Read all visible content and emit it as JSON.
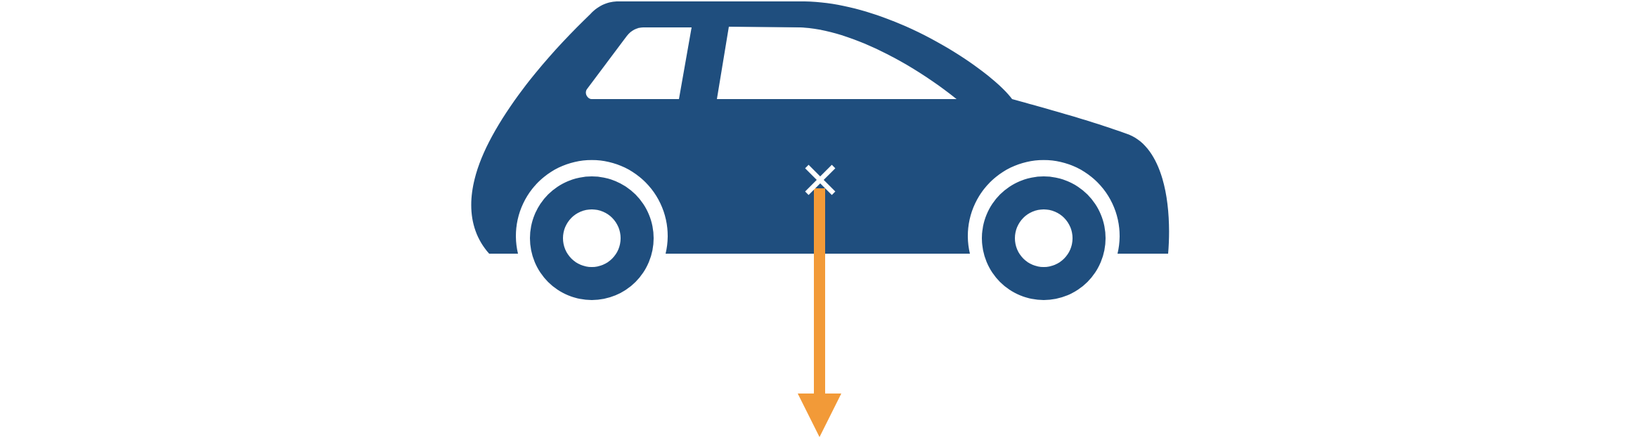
{
  "diagram": {
    "vehicle_icon": "car-side-icon",
    "marker_icon": "center-of-mass-x-icon",
    "force_arrow_icon": "arrow-down-icon",
    "colors": {
      "car_body": "#1f4e7e",
      "wheel": "#1f4e7e",
      "window": "#ffffff",
      "marker": "#ffffff",
      "force_arrow": "#f29a38",
      "background": "#ffffff"
    }
  }
}
